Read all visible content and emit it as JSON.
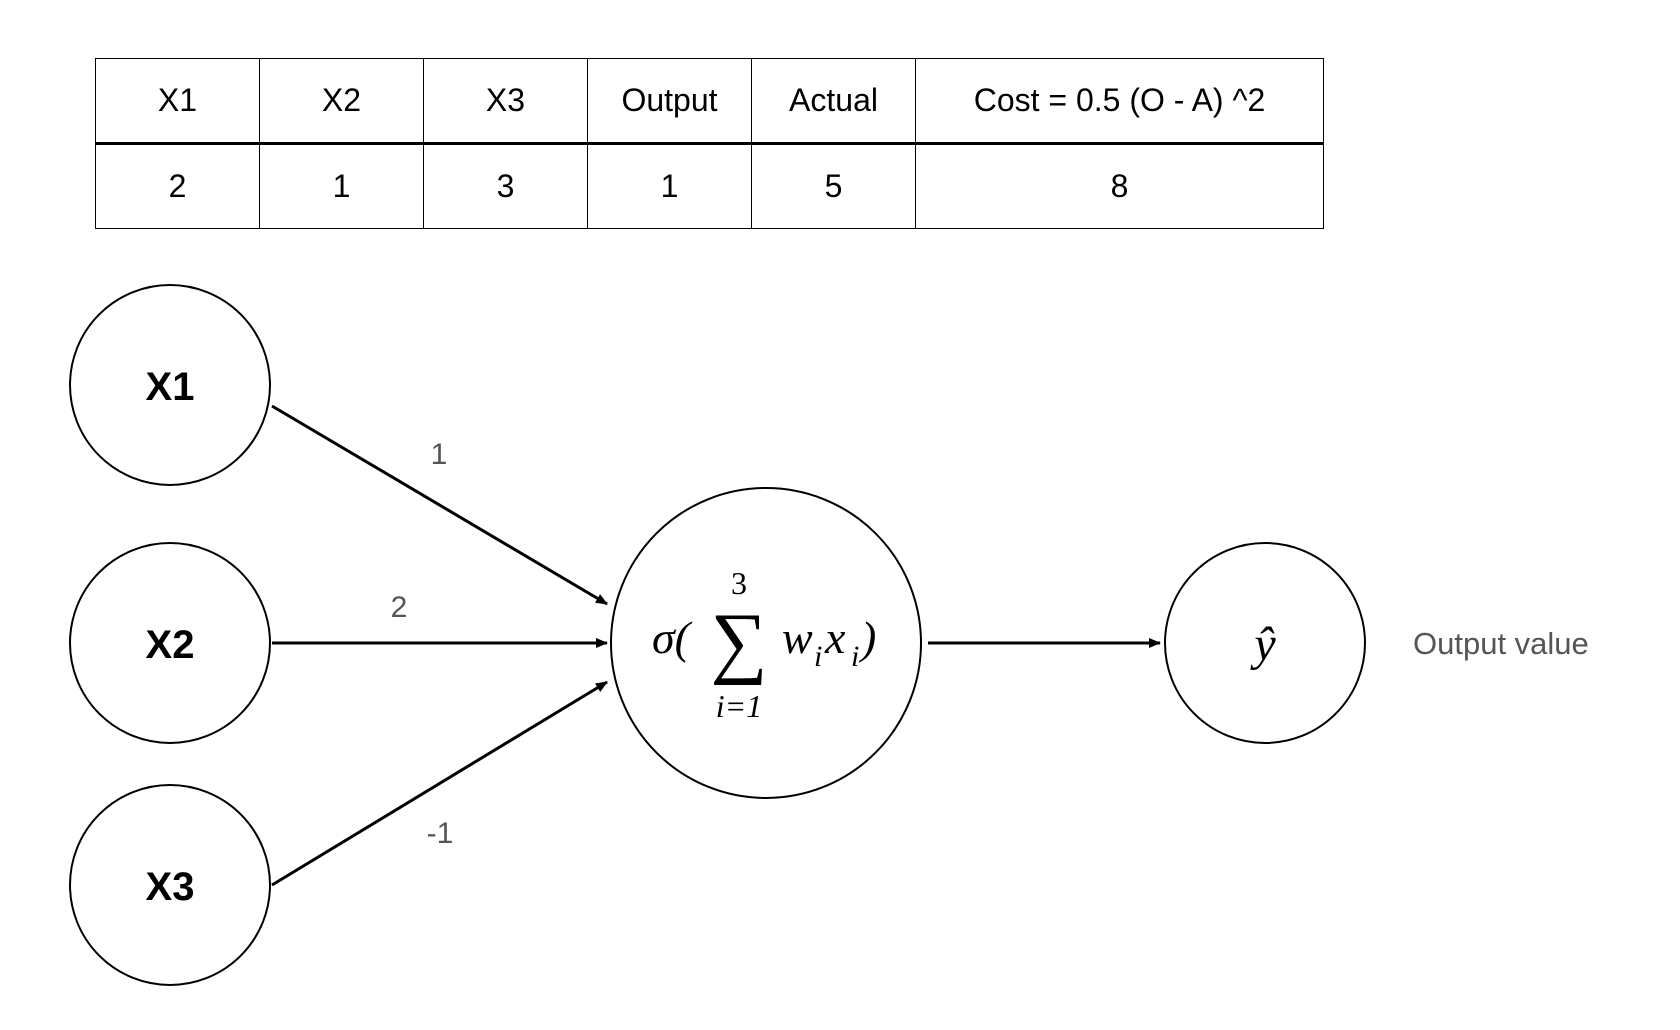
{
  "table": {
    "headers": [
      "X1",
      "X2",
      "X3",
      "Output",
      "Actual",
      "Cost = 0.5 (O - A) ^2"
    ],
    "row": [
      "2",
      "1",
      "3",
      "1",
      "5",
      "8"
    ]
  },
  "inputs": [
    {
      "label": "X1",
      "weight": "1"
    },
    {
      "label": "X2",
      "weight": "2"
    },
    {
      "label": "X3",
      "weight": "-1"
    }
  ],
  "neuron": {
    "sigma": "σ(",
    "sum_symbol": "∑",
    "upper_limit": "3",
    "lower_limit": "i=1",
    "w": "w",
    "w_sub": "i",
    "x": "x",
    "x_sub": "i",
    "close_paren": ")"
  },
  "output": {
    "symbol": "ŷ",
    "caption": "Output value"
  }
}
